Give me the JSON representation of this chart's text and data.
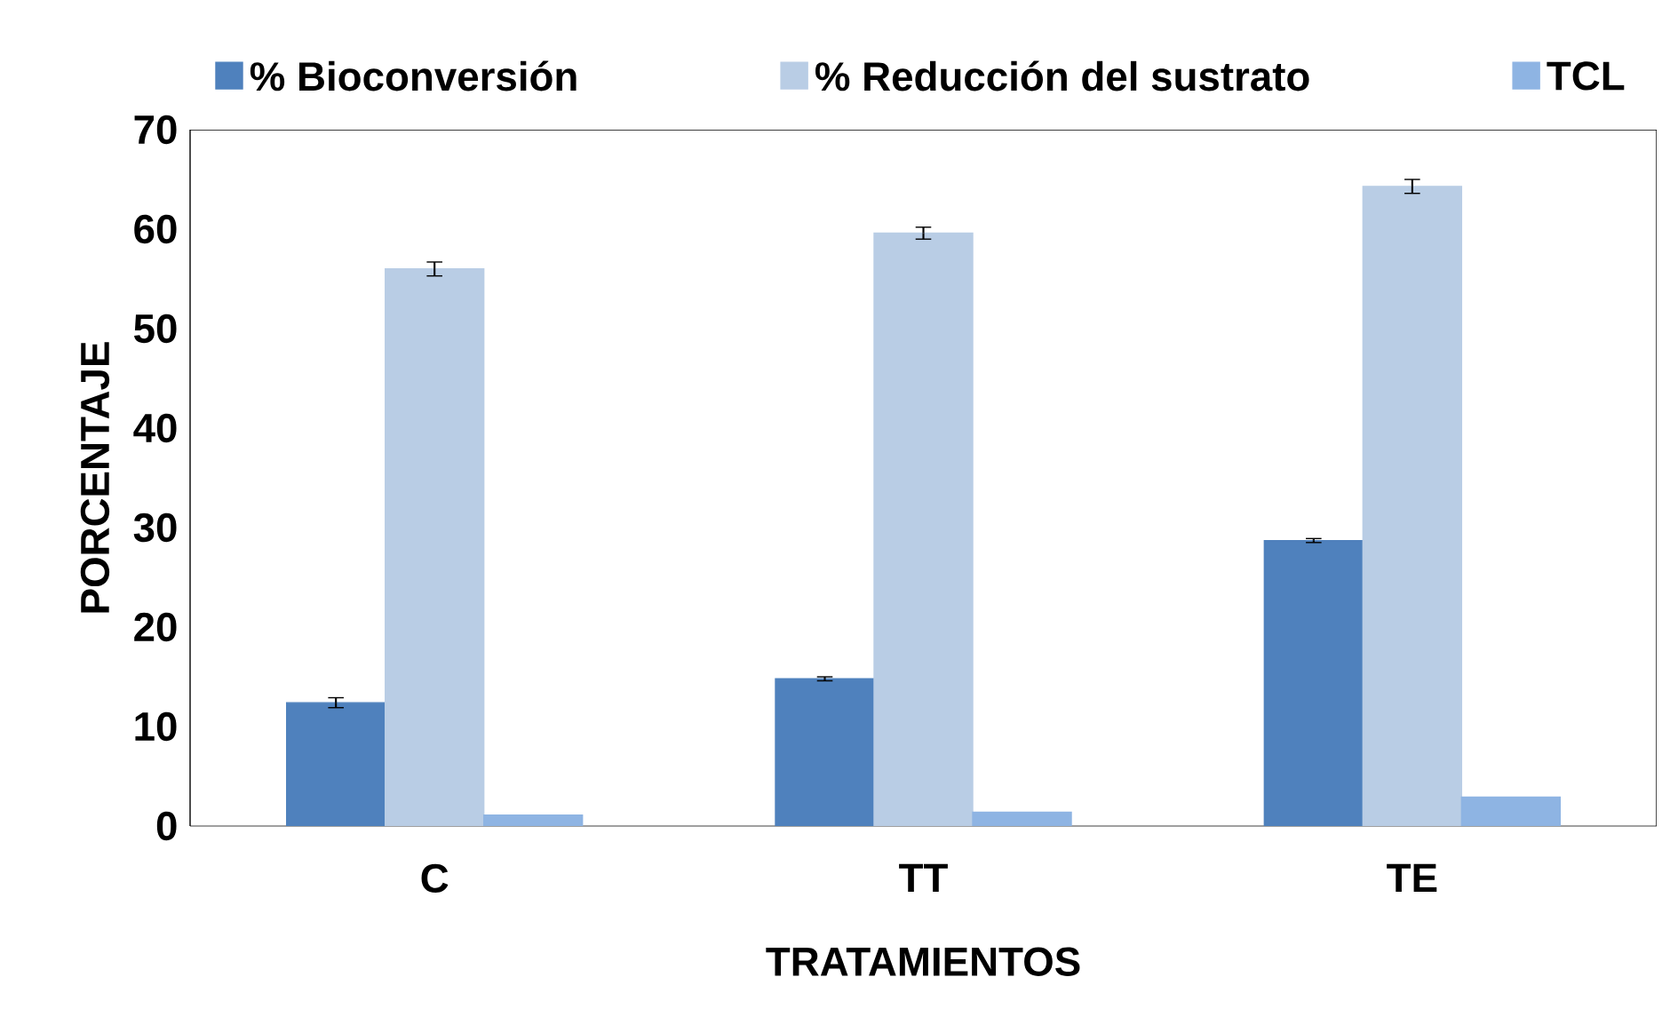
{
  "chart_data": {
    "type": "bar",
    "xlabel": "TRATAMIENTOS",
    "ylabel": "PORCENTAJE",
    "categories": [
      "C",
      "TT",
      "TE"
    ],
    "series": [
      {
        "name": "% Bioconversión",
        "color": "#4f81bd",
        "values": [
          12.4,
          14.8,
          28.7
        ],
        "errors": [
          0.5,
          0.2,
          0.2
        ]
      },
      {
        "name": "% Reducción del sustrato",
        "color": "#b9cde5",
        "values": [
          56.0,
          59.6,
          64.3
        ],
        "errors": [
          0.7,
          0.6,
          0.7
        ]
      },
      {
        "name": "TCL",
        "color": "#8eb4e3",
        "values": [
          1.1,
          1.4,
          2.9
        ]
      }
    ],
    "ylim": [
      0,
      70
    ],
    "yticks": [
      0,
      10,
      20,
      30,
      40,
      50,
      60,
      70
    ],
    "grid": false,
    "legend": "top"
  }
}
